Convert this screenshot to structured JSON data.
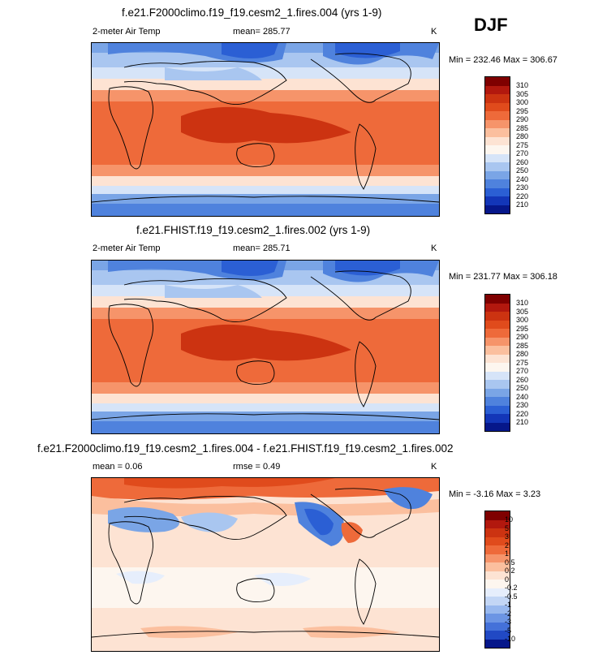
{
  "season": "DJF",
  "panels": [
    {
      "title": "f.e21.F2000climo.f19_f19.cesm2_1.fires.004 (yrs 1-9)",
      "variable": "2-meter Air Temp",
      "mean_text": "mean= 285.77",
      "units": "K",
      "minmax_text": "Min = 232.46 Max = 306.67",
      "colorbar_labels": [
        "310",
        "305",
        "300",
        "295",
        "290",
        "285",
        "280",
        "275",
        "270",
        "260",
        "250",
        "240",
        "230",
        "220",
        "210"
      ]
    },
    {
      "title": "f.e21.FHIST.f19_f19.cesm2_1.fires.002 (yrs 1-9)",
      "variable": "2-meter Air Temp",
      "mean_text": "mean= 285.71",
      "units": "K",
      "minmax_text": "Min = 231.77 Max = 306.18",
      "colorbar_labels": [
        "310",
        "305",
        "300",
        "295",
        "290",
        "285",
        "280",
        "275",
        "270",
        "260",
        "250",
        "240",
        "230",
        "220",
        "210"
      ]
    },
    {
      "title": "f.e21.F2000climo.f19_f19.cesm2_1.fires.004 - f.e21.FHIST.f19_f19.cesm2_1.fires.002",
      "mean_text": "mean =   0.06",
      "rmse_text": "rmse =   0.49",
      "units": "K",
      "minmax_text": "Min =  -3.16 Max =   3.23",
      "colorbar_labels": [
        "10",
        "5",
        "3",
        "2",
        "1",
        "0.5",
        "0.2",
        "0",
        "-0.2",
        "-0.5",
        "-1",
        "-2",
        "-3",
        "-5",
        "-10"
      ]
    }
  ],
  "colors": {
    "temp_scale": [
      "#7f0000",
      "#b2180e",
      "#cc3311",
      "#e04b1c",
      "#ee6a3a",
      "#f6946a",
      "#fbbf9e",
      "#fde3d3",
      "#fdf6ef",
      "#d6e4f8",
      "#a9c6f0",
      "#7aa5e6",
      "#4f82dd",
      "#2b5fd4",
      "#1336b8",
      "#06178a"
    ],
    "diff_scale": [
      "#7f0000",
      "#b2180e",
      "#cc3311",
      "#e04b1c",
      "#ee6a3a",
      "#f6946a",
      "#fbbf9e",
      "#fde3d3",
      "#fdf6ef",
      "#e6eefc",
      "#c3d6f5",
      "#98b8ee",
      "#6c95e4",
      "#4471d9",
      "#2149c4",
      "#06178a"
    ]
  }
}
